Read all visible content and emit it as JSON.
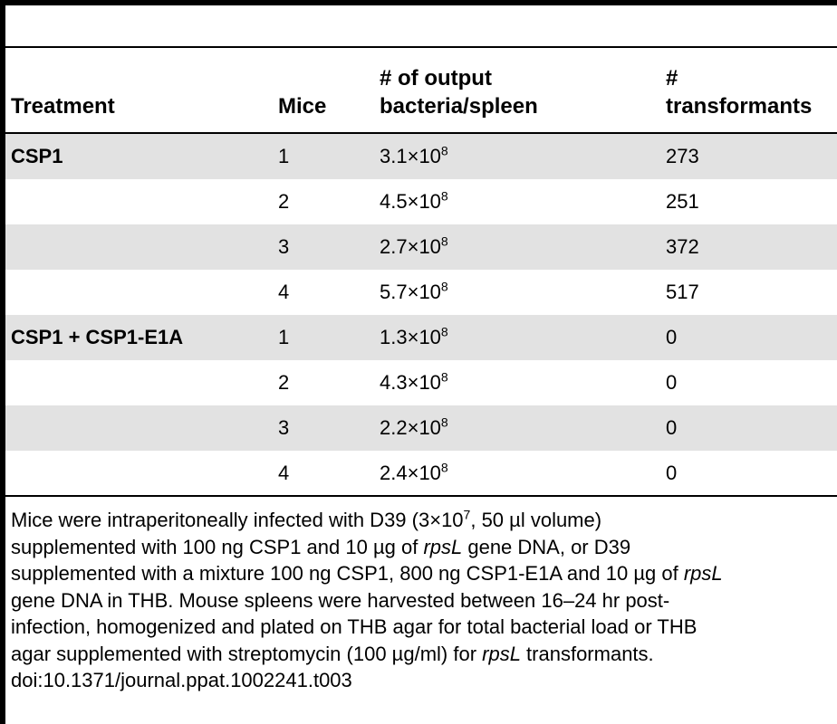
{
  "header": {
    "treatment": "Treatment",
    "mice": "Mice",
    "output_line1": "# of output",
    "output_line2": "bacteria/spleen",
    "transf_line1": "#",
    "transf_line2": "transformants"
  },
  "rows": [
    {
      "treatment": "CSP1",
      "mice": "1",
      "mantissa": "3.1",
      "times": "×10",
      "exp": "8",
      "transformants": "273"
    },
    {
      "treatment": "",
      "mice": "2",
      "mantissa": "4.5",
      "times": "×10",
      "exp": "8",
      "transformants": "251"
    },
    {
      "treatment": "",
      "mice": "3",
      "mantissa": "2.7",
      "times": "×10",
      "exp": "8",
      "transformants": "372"
    },
    {
      "treatment": "",
      "mice": "4",
      "mantissa": "5.7",
      "times": "×10",
      "exp": "8",
      "transformants": "517"
    },
    {
      "treatment": "CSP1 + CSP1-E1A",
      "mice": "1",
      "mantissa": "1.3",
      "times": "×10",
      "exp": "8",
      "transformants": "0"
    },
    {
      "treatment": "",
      "mice": "2",
      "mantissa": "4.3",
      "times": "×10",
      "exp": "8",
      "transformants": "0"
    },
    {
      "treatment": "",
      "mice": "3",
      "mantissa": "2.2",
      "times": "×10",
      "exp": "8",
      "transformants": "0"
    },
    {
      "treatment": "",
      "mice": "4",
      "mantissa": "2.4",
      "times": "×10",
      "exp": "8",
      "transformants": "0"
    }
  ],
  "footnote": {
    "l1a": "Mice were intraperitoneally infected with D39 (3×10",
    "l1sup": "7",
    "l1b": ", 50 µl volume)",
    "l2a": "supplemented with 100 ng CSP1 and 10 µg of ",
    "l2i": "rpsL",
    "l2b": " gene DNA, or D39",
    "l3a": "supplemented with a mixture 100 ng CSP1, 800 ng CSP1-E1A and 10 µg of ",
    "l3i": "rpsL",
    "l4": "gene DNA in THB. Mouse spleens were harvested between 16–24 hr post-",
    "l5": "infection, homogenized and plated on THB agar for total bacterial load or THB",
    "l6a": "agar supplemented with streptomycin (100 µg/ml) for ",
    "l6i": "rpsL",
    "l6b": " transformants.",
    "doi": "doi:10.1371/journal.ppat.1002241.t003"
  }
}
